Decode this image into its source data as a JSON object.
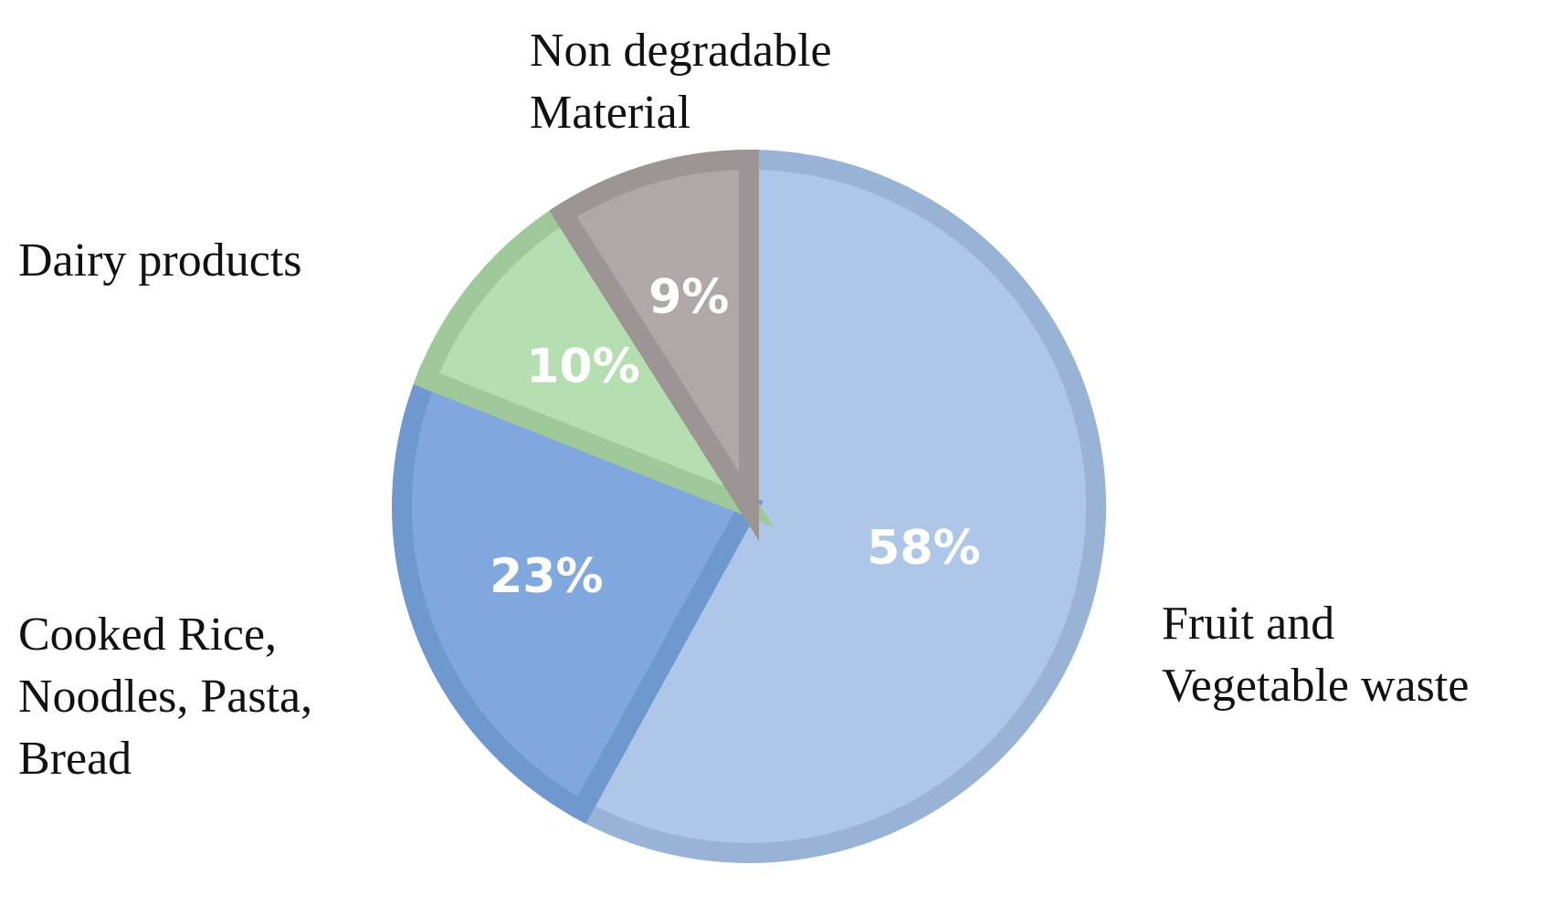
{
  "chart_data": {
    "type": "pie",
    "title": "",
    "slices": [
      {
        "name_lines": [
          "Fruit and",
          "Vegetable waste"
        ],
        "value": 58,
        "label": "58%",
        "fill": "#aec6e8",
        "stroke": "#98b3d6"
      },
      {
        "name_lines": [
          "Cooked Rice,",
          "Noodles, Pasta,",
          "Bread"
        ],
        "value": 23,
        "label": "23%",
        "fill": "#80a8de",
        "stroke": "#6f98cf"
      },
      {
        "name_lines": [
          "Dairy products"
        ],
        "value": 10,
        "label": "10%",
        "fill": "#b5dfb0",
        "stroke": "#a0c99b"
      },
      {
        "name_lines": [
          "Non degradable",
          "Material"
        ],
        "value": 9,
        "label": "9%",
        "fill": "#afa8a6",
        "stroke": "#9c9593"
      }
    ],
    "start": "12 o'clock",
    "direction": "clockwise",
    "legend": "none"
  }
}
